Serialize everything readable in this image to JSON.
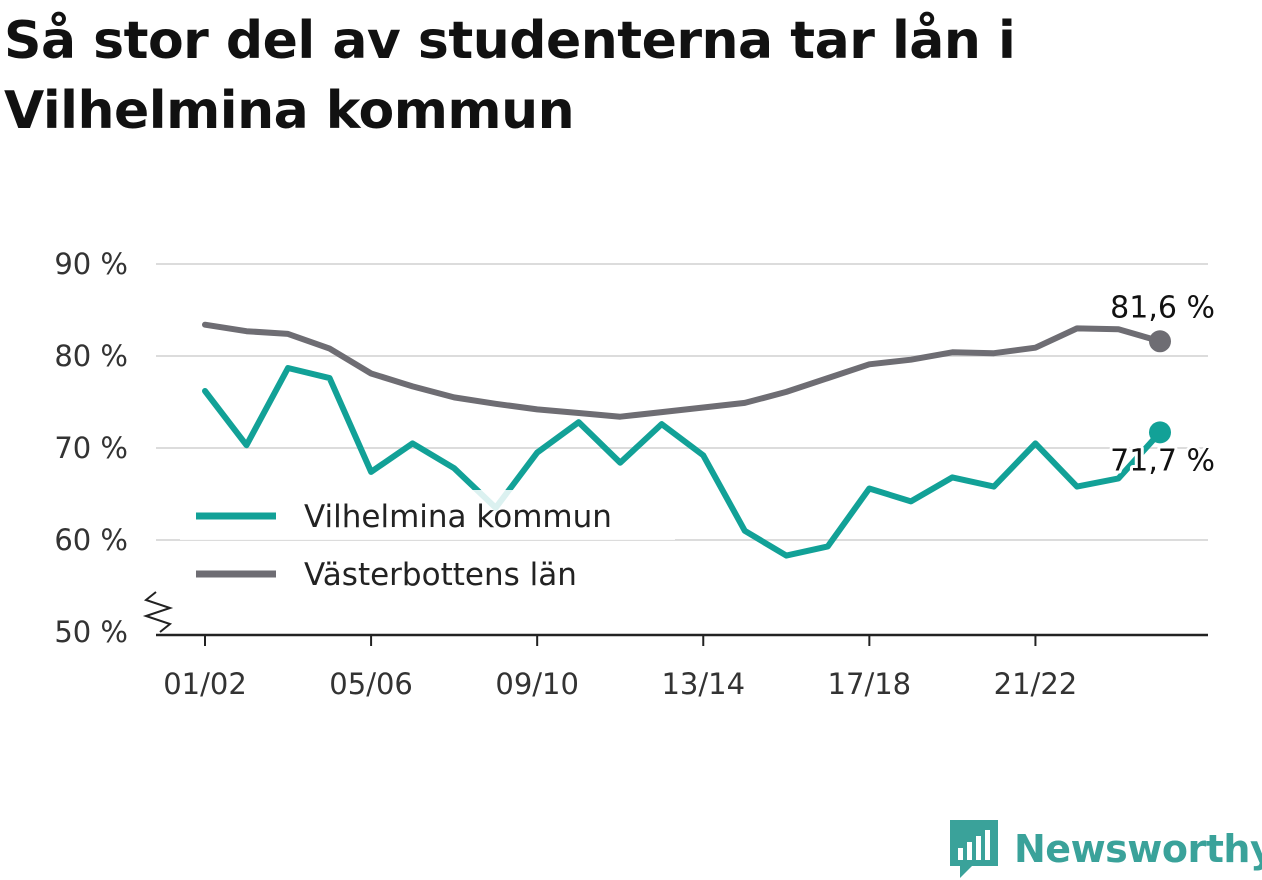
{
  "title": "Så stor del av studenterna tar lån i Vilhelmina kommun",
  "brand": {
    "name": "Newsworthy",
    "icon": "newsworthy-logo-icon",
    "color": "#3aa29a"
  },
  "chart_data": {
    "type": "line",
    "title": "Så stor del av studenterna tar lån i Vilhelmina kommun",
    "x_ticks": [
      "01/02",
      "05/06",
      "09/10",
      "13/14",
      "17/18",
      "21/22"
    ],
    "y_ticks": [
      "50 %",
      "60 %",
      "70 %",
      "80 %",
      "90 %"
    ],
    "y_tick_values": [
      50,
      60,
      70,
      80,
      90
    ],
    "ylim": [
      50,
      90
    ],
    "y_axis_break": true,
    "grid": true,
    "legend_position": "bottom-left",
    "x_positions": 24,
    "series": [
      {
        "name": "Vilhelmina kommun",
        "color": "#12a197",
        "values": [
          76.2,
          70.3,
          78.7,
          77.6,
          67.4,
          70.5,
          67.8,
          63.5,
          69.5,
          72.8,
          68.4,
          72.6,
          69.2,
          61.0,
          58.3,
          59.3,
          65.6,
          64.2,
          66.8,
          65.8,
          70.5,
          65.8,
          66.7,
          71.7
        ],
        "end_label": "71,7 %"
      },
      {
        "name": "Västerbottens län",
        "color": "#6e6d73",
        "values": [
          83.4,
          82.7,
          82.4,
          80.8,
          78.1,
          76.7,
          75.5,
          74.8,
          74.2,
          73.8,
          73.4,
          73.9,
          74.4,
          74.9,
          76.1,
          77.6,
          79.1,
          79.6,
          80.4,
          80.3,
          80.9,
          83.0,
          82.9,
          81.6
        ],
        "end_label": "81,6 %"
      }
    ]
  }
}
